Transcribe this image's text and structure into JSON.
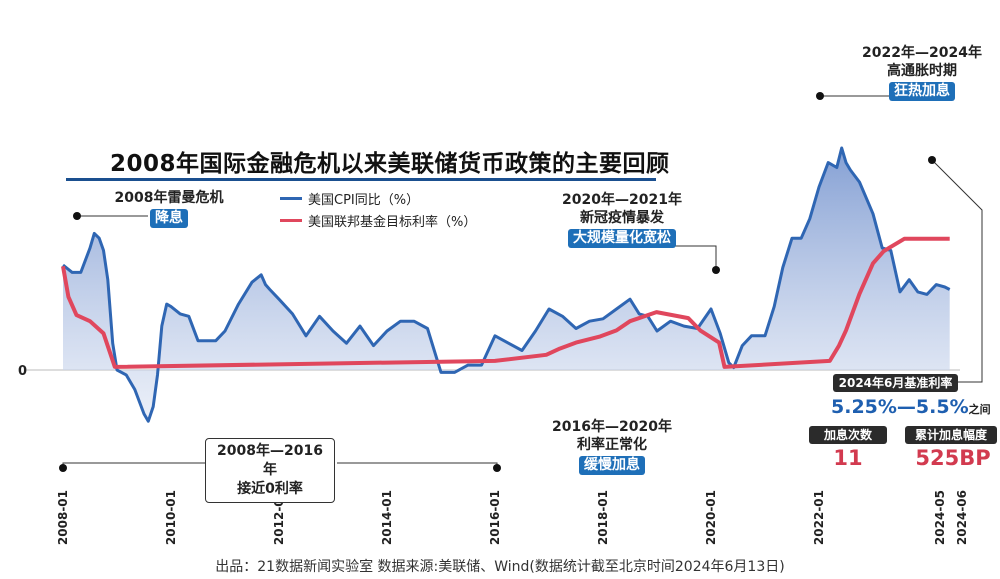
{
  "title": "2008年国际金融危机以来美联储货币政策的主要回顾",
  "legend": {
    "cpi": "美国CPI同比（%）",
    "fed": "美国联邦基金目标利率（%）"
  },
  "colors": {
    "cpi_line": "#2f66b3",
    "cpi_fill": "#9db3da",
    "fed_line": "#e0475d",
    "pill": "#1e6fb8",
    "dark": "#2b2b2b",
    "red_text": "#d23a4f",
    "blue_text": "#1e5fb0"
  },
  "annotations": {
    "a2008": {
      "line1": "2008年雷曼危机",
      "pill": "降息"
    },
    "a2020": {
      "line1": "2020年—2021年",
      "line2": "新冠疫情暴发",
      "pill": "大规模量化宽松"
    },
    "a2022": {
      "line1": "2022年—2024年",
      "line2": "高通胀时期",
      "pill": "狂热加息"
    },
    "a2016": {
      "line1": "2016年—2020年",
      "line2": "利率正常化",
      "pill": "缓慢加息"
    },
    "near_zero": {
      "line1": "2008年—2016年",
      "line2": "接近0利率"
    }
  },
  "summary": {
    "june_rate_label": "2024年6月基准利率",
    "rate_range": "5.25%—5.5%",
    "rate_suffix": "之间",
    "hike_count_label": "加息次数",
    "hike_count": "11",
    "hike_total_label": "累计加息幅度",
    "hike_total": "525BP"
  },
  "footer": "出品：21数据新闻实验室    数据来源:美联储、Wind(数据统计截至北京时间2024年6月13日)",
  "chart_data": {
    "type": "line",
    "title": "2008年国际金融危机以来美联储货币政策的主要回顾",
    "xlabel": "",
    "ylabel": "",
    "y_zero_label": "0",
    "x_ticks": [
      "2008-01",
      "2010-01",
      "2012-01",
      "2014-01",
      "2016-01",
      "2018-01",
      "2020-01",
      "2022-01",
      "2024-05",
      "2024-06"
    ],
    "ylim": [
      -2.5,
      9.5
    ],
    "series": [
      {
        "name": "美国CPI同比（%）",
        "type": "area",
        "x": [
          2008.0,
          2008.17,
          2008.33,
          2008.5,
          2008.58,
          2008.67,
          2008.75,
          2008.83,
          2008.92,
          2009.0,
          2009.17,
          2009.33,
          2009.5,
          2009.58,
          2009.67,
          2009.75,
          2009.83,
          2009.92,
          2010.0,
          2010.17,
          2010.33,
          2010.5,
          2010.67,
          2010.83,
          2011.0,
          2011.25,
          2011.5,
          2011.67,
          2011.75,
          2011.83,
          2012.0,
          2012.25,
          2012.5,
          2012.75,
          2013.0,
          2013.25,
          2013.5,
          2013.75,
          2014.0,
          2014.25,
          2014.5,
          2014.75,
          2015.0,
          2015.25,
          2015.5,
          2015.75,
          2016.0,
          2016.25,
          2016.5,
          2016.75,
          2017.0,
          2017.25,
          2017.5,
          2017.75,
          2018.0,
          2018.25,
          2018.5,
          2018.67,
          2018.83,
          2019.0,
          2019.25,
          2019.5,
          2019.75,
          2020.0,
          2020.17,
          2020.33,
          2020.42,
          2020.58,
          2020.75,
          2021.0,
          2021.17,
          2021.33,
          2021.5,
          2021.67,
          2021.83,
          2022.0,
          2022.17,
          2022.33,
          2022.42,
          2022.5,
          2022.58,
          2022.75,
          2023.0,
          2023.17,
          2023.33,
          2023.5,
          2023.67,
          2023.83,
          2024.0,
          2024.17,
          2024.33,
          2024.42
        ],
        "values": [
          4.3,
          4.0,
          4.0,
          5.0,
          5.6,
          5.4,
          4.9,
          3.7,
          1.1,
          0.0,
          -0.2,
          -0.8,
          -1.8,
          -2.1,
          -1.5,
          -0.2,
          1.8,
          2.7,
          2.6,
          2.3,
          2.2,
          1.2,
          1.2,
          1.2,
          1.6,
          2.7,
          3.6,
          3.9,
          3.5,
          3.3,
          2.9,
          2.3,
          1.4,
          2.2,
          1.6,
          1.1,
          1.8,
          1.0,
          1.6,
          2.0,
          2.0,
          1.7,
          -0.1,
          -0.1,
          0.2,
          0.2,
          1.4,
          1.1,
          0.8,
          1.6,
          2.5,
          2.2,
          1.7,
          2.0,
          2.1,
          2.5,
          2.9,
          2.3,
          2.2,
          1.6,
          2.0,
          1.8,
          1.7,
          2.5,
          1.5,
          0.3,
          0.1,
          1.0,
          1.4,
          1.4,
          2.6,
          4.2,
          5.4,
          5.4,
          6.2,
          7.5,
          8.5,
          8.3,
          9.1,
          8.5,
          8.2,
          7.7,
          6.4,
          5.0,
          4.9,
          3.2,
          3.7,
          3.2,
          3.1,
          3.5,
          3.4,
          3.3
        ]
      },
      {
        "name": "美国联邦基金目标利率（%）",
        "type": "line",
        "x": [
          2008.0,
          2008.1,
          2008.25,
          2008.5,
          2008.75,
          2008.96,
          2016.0,
          2016.95,
          2017.2,
          2017.5,
          2017.95,
          2018.25,
          2018.5,
          2018.99,
          2019.58,
          2019.8,
          2020.15,
          2020.25,
          2022.2,
          2022.37,
          2022.5,
          2022.75,
          2023.0,
          2023.2,
          2023.58,
          2024.42
        ],
        "values": [
          4.25,
          3.0,
          2.25,
          2.0,
          1.5,
          0.125,
          0.375,
          0.625,
          0.875,
          1.125,
          1.375,
          1.625,
          2.0,
          2.375,
          2.125,
          1.625,
          1.125,
          0.125,
          0.375,
          1.0,
          1.625,
          3.125,
          4.375,
          4.875,
          5.375,
          5.375
        ]
      }
    ]
  }
}
